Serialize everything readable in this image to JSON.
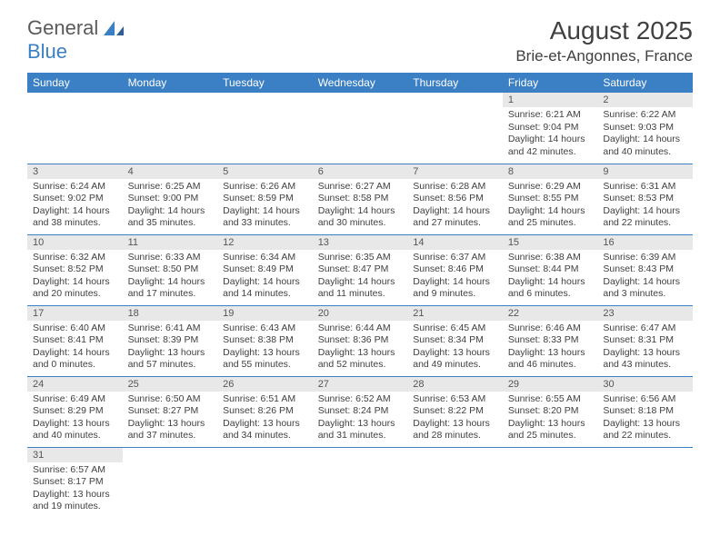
{
  "logo": {
    "text1": "General",
    "text2": "Blue"
  },
  "title": "August 2025",
  "location": "Brie-et-Angonnes, France",
  "colors": {
    "header_bg": "#3b7fc4",
    "header_fg": "#ffffff",
    "daynum_bg": "#e8e8e8",
    "text": "#404040",
    "row_border": "#3b7fc4"
  },
  "day_headers": [
    "Sunday",
    "Monday",
    "Tuesday",
    "Wednesday",
    "Thursday",
    "Friday",
    "Saturday"
  ],
  "weeks": [
    [
      null,
      null,
      null,
      null,
      null,
      {
        "n": "1",
        "sr": "6:21 AM",
        "ss": "9:04 PM",
        "dl": "14 hours and 42 minutes."
      },
      {
        "n": "2",
        "sr": "6:22 AM",
        "ss": "9:03 PM",
        "dl": "14 hours and 40 minutes."
      }
    ],
    [
      {
        "n": "3",
        "sr": "6:24 AM",
        "ss": "9:02 PM",
        "dl": "14 hours and 38 minutes."
      },
      {
        "n": "4",
        "sr": "6:25 AM",
        "ss": "9:00 PM",
        "dl": "14 hours and 35 minutes."
      },
      {
        "n": "5",
        "sr": "6:26 AM",
        "ss": "8:59 PM",
        "dl": "14 hours and 33 minutes."
      },
      {
        "n": "6",
        "sr": "6:27 AM",
        "ss": "8:58 PM",
        "dl": "14 hours and 30 minutes."
      },
      {
        "n": "7",
        "sr": "6:28 AM",
        "ss": "8:56 PM",
        "dl": "14 hours and 27 minutes."
      },
      {
        "n": "8",
        "sr": "6:29 AM",
        "ss": "8:55 PM",
        "dl": "14 hours and 25 minutes."
      },
      {
        "n": "9",
        "sr": "6:31 AM",
        "ss": "8:53 PM",
        "dl": "14 hours and 22 minutes."
      }
    ],
    [
      {
        "n": "10",
        "sr": "6:32 AM",
        "ss": "8:52 PM",
        "dl": "14 hours and 20 minutes."
      },
      {
        "n": "11",
        "sr": "6:33 AM",
        "ss": "8:50 PM",
        "dl": "14 hours and 17 minutes."
      },
      {
        "n": "12",
        "sr": "6:34 AM",
        "ss": "8:49 PM",
        "dl": "14 hours and 14 minutes."
      },
      {
        "n": "13",
        "sr": "6:35 AM",
        "ss": "8:47 PM",
        "dl": "14 hours and 11 minutes."
      },
      {
        "n": "14",
        "sr": "6:37 AM",
        "ss": "8:46 PM",
        "dl": "14 hours and 9 minutes."
      },
      {
        "n": "15",
        "sr": "6:38 AM",
        "ss": "8:44 PM",
        "dl": "14 hours and 6 minutes."
      },
      {
        "n": "16",
        "sr": "6:39 AM",
        "ss": "8:43 PM",
        "dl": "14 hours and 3 minutes."
      }
    ],
    [
      {
        "n": "17",
        "sr": "6:40 AM",
        "ss": "8:41 PM",
        "dl": "14 hours and 0 minutes."
      },
      {
        "n": "18",
        "sr": "6:41 AM",
        "ss": "8:39 PM",
        "dl": "13 hours and 57 minutes."
      },
      {
        "n": "19",
        "sr": "6:43 AM",
        "ss": "8:38 PM",
        "dl": "13 hours and 55 minutes."
      },
      {
        "n": "20",
        "sr": "6:44 AM",
        "ss": "8:36 PM",
        "dl": "13 hours and 52 minutes."
      },
      {
        "n": "21",
        "sr": "6:45 AM",
        "ss": "8:34 PM",
        "dl": "13 hours and 49 minutes."
      },
      {
        "n": "22",
        "sr": "6:46 AM",
        "ss": "8:33 PM",
        "dl": "13 hours and 46 minutes."
      },
      {
        "n": "23",
        "sr": "6:47 AM",
        "ss": "8:31 PM",
        "dl": "13 hours and 43 minutes."
      }
    ],
    [
      {
        "n": "24",
        "sr": "6:49 AM",
        "ss": "8:29 PM",
        "dl": "13 hours and 40 minutes."
      },
      {
        "n": "25",
        "sr": "6:50 AM",
        "ss": "8:27 PM",
        "dl": "13 hours and 37 minutes."
      },
      {
        "n": "26",
        "sr": "6:51 AM",
        "ss": "8:26 PM",
        "dl": "13 hours and 34 minutes."
      },
      {
        "n": "27",
        "sr": "6:52 AM",
        "ss": "8:24 PM",
        "dl": "13 hours and 31 minutes."
      },
      {
        "n": "28",
        "sr": "6:53 AM",
        "ss": "8:22 PM",
        "dl": "13 hours and 28 minutes."
      },
      {
        "n": "29",
        "sr": "6:55 AM",
        "ss": "8:20 PM",
        "dl": "13 hours and 25 minutes."
      },
      {
        "n": "30",
        "sr": "6:56 AM",
        "ss": "8:18 PM",
        "dl": "13 hours and 22 minutes."
      }
    ],
    [
      {
        "n": "31",
        "sr": "6:57 AM",
        "ss": "8:17 PM",
        "dl": "13 hours and 19 minutes."
      },
      null,
      null,
      null,
      null,
      null,
      null
    ]
  ],
  "labels": {
    "sunrise": "Sunrise:",
    "sunset": "Sunset:",
    "daylight": "Daylight:"
  }
}
